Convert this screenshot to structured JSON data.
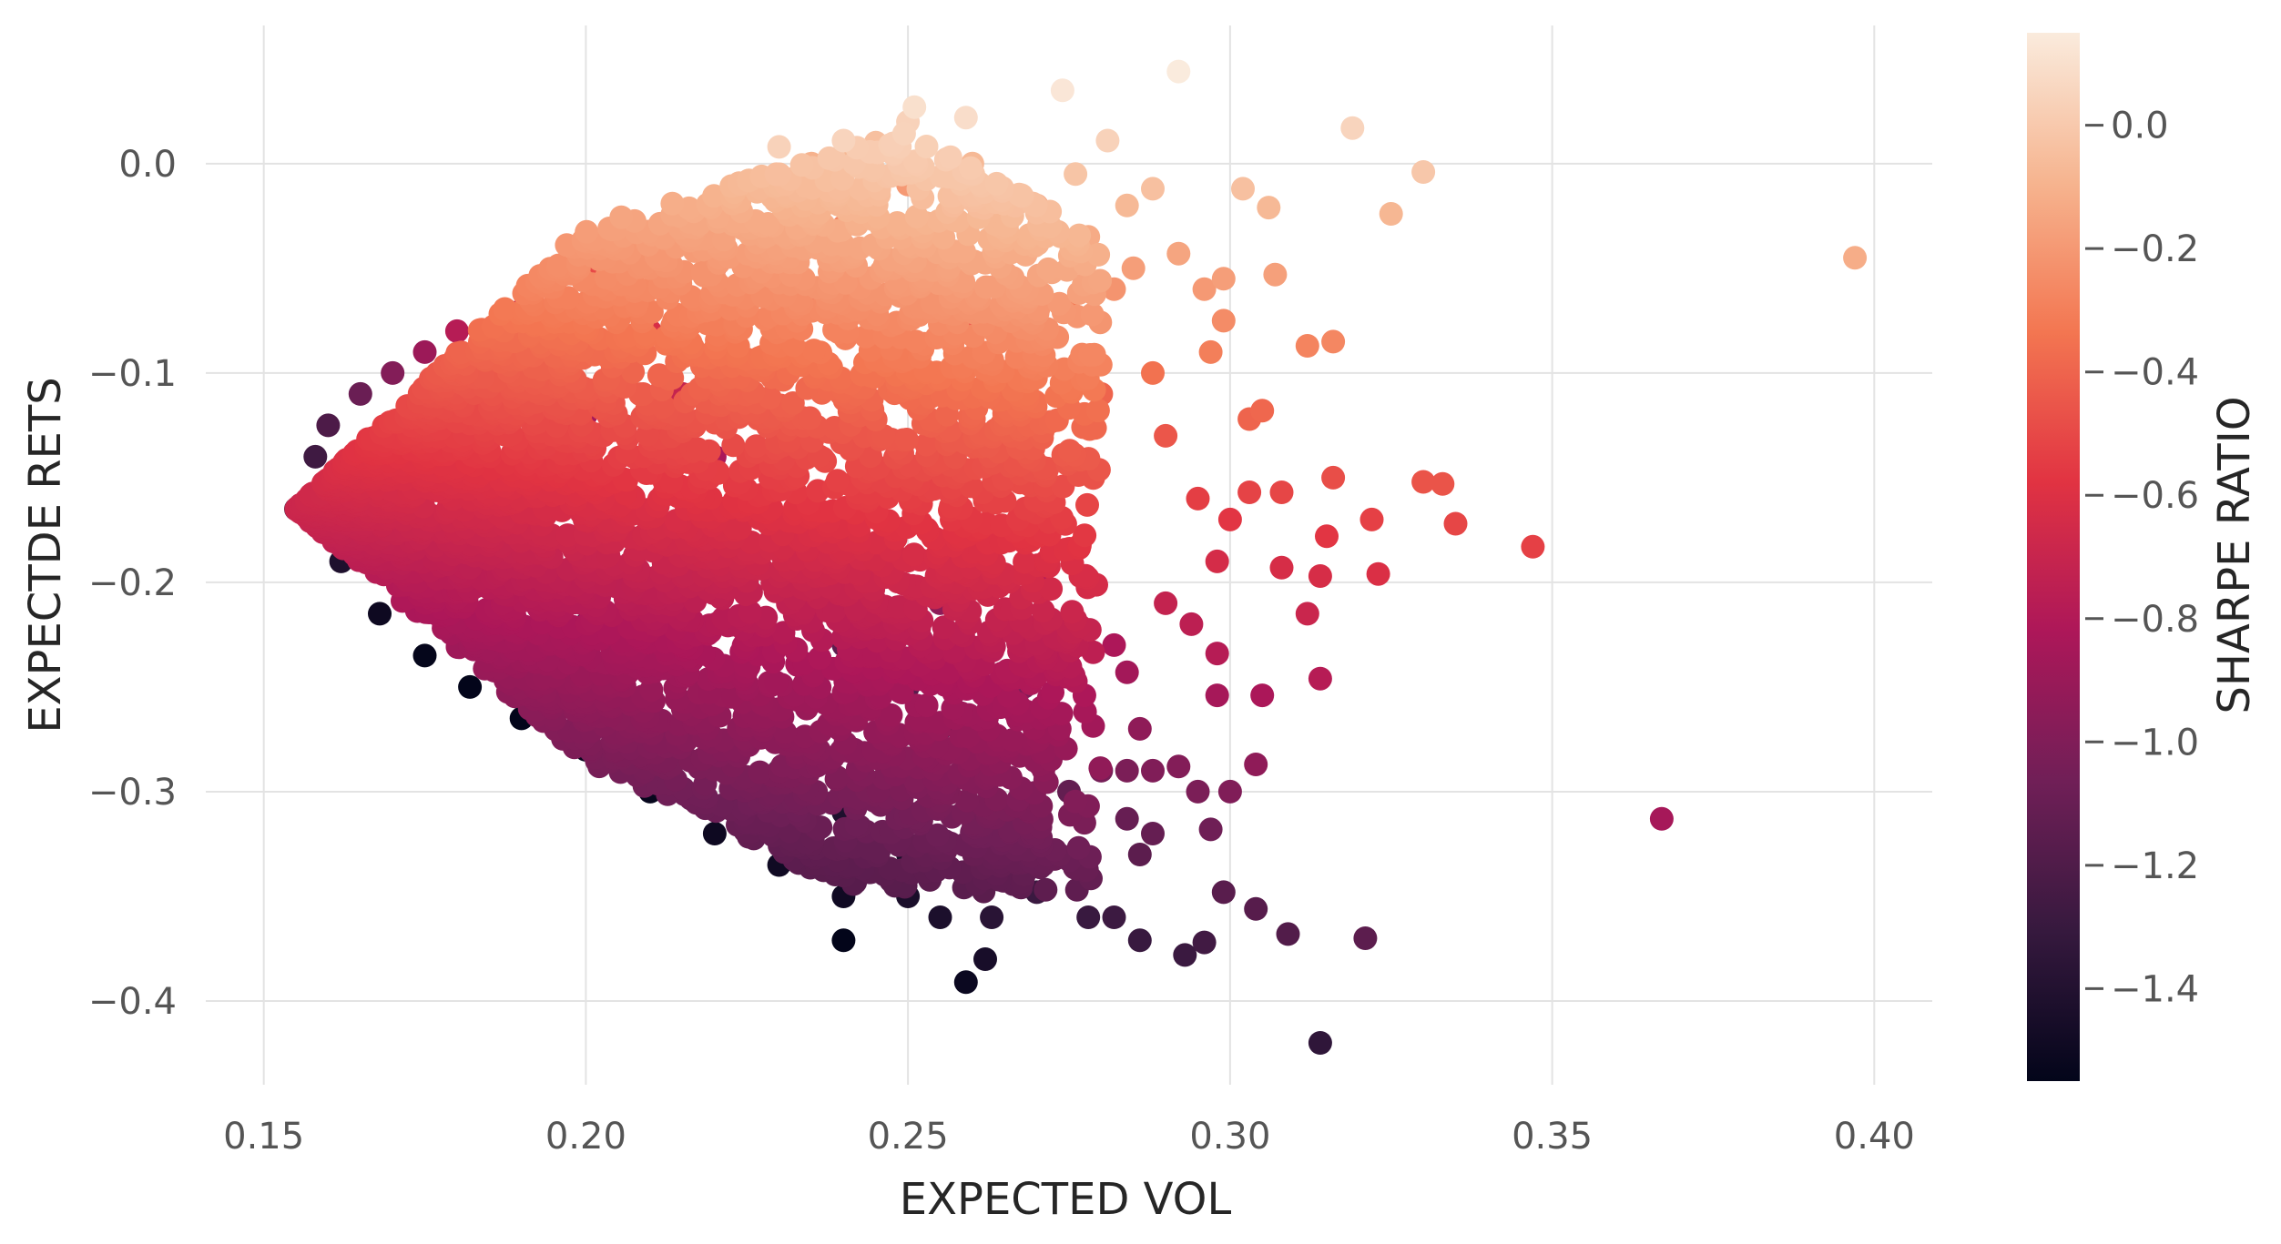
{
  "chart_data": {
    "type": "scatter",
    "xlabel": "EXPECTED VOL",
    "ylabel": "EXPECTDE RETS",
    "colorbar_label": "SHARPE RATIO",
    "xlim": [
      0.141,
      0.409
    ],
    "ylim": [
      -0.44,
      0.066
    ],
    "x_ticks": [
      0.15,
      0.2,
      0.25,
      0.3,
      0.35,
      0.4
    ],
    "x_tick_labels": [
      "0.15",
      "0.20",
      "0.25",
      "0.30",
      "0.35",
      "0.40"
    ],
    "y_ticks": [
      0.0,
      -0.1,
      -0.2,
      -0.3,
      -0.4
    ],
    "y_tick_labels": [
      "0.0",
      "−0.1",
      "−0.2",
      "−0.3",
      "−0.4"
    ],
    "colorbar_range": [
      -1.55,
      0.15
    ],
    "colorbar_ticks": [
      0.0,
      -0.2,
      -0.4,
      -0.6,
      -0.8,
      -1.0,
      -1.2,
      -1.4
    ],
    "colorbar_tick_labels": [
      "0.0",
      "−0.2",
      "−0.4",
      "−0.6",
      "−0.8",
      "−1.0",
      "−1.2",
      "−1.4"
    ],
    "colormap": [
      "#03051a",
      "#36193e",
      "#701f57",
      "#ad1759",
      "#e13342",
      "#f37651",
      "#f6b48f",
      "#faebdd"
    ],
    "grid": true,
    "dense_region_sample": [
      [
        0.155,
        -0.165,
        -1.36
      ],
      [
        0.158,
        -0.14,
        -1.27
      ],
      [
        0.16,
        -0.125,
        -1.21
      ],
      [
        0.162,
        -0.19,
        -1.42
      ],
      [
        0.165,
        -0.11,
        -1.09
      ],
      [
        0.168,
        -0.215,
        -1.5
      ],
      [
        0.17,
        -0.1,
        -0.99
      ],
      [
        0.175,
        -0.09,
        -0.89
      ],
      [
        0.175,
        -0.235,
        -1.54
      ],
      [
        0.18,
        -0.08,
        -0.78
      ],
      [
        0.182,
        -0.25,
        -1.55
      ],
      [
        0.19,
        -0.07,
        -0.68
      ],
      [
        0.19,
        -0.265,
        -1.55
      ],
      [
        0.2,
        -0.05,
        -0.5
      ],
      [
        0.2,
        -0.28,
        -1.53
      ],
      [
        0.21,
        -0.035,
        -0.37
      ],
      [
        0.21,
        -0.3,
        -1.53
      ],
      [
        0.22,
        -0.02,
        -0.24
      ],
      [
        0.22,
        -0.32,
        -1.5
      ],
      [
        0.23,
        -0.01,
        -0.17
      ],
      [
        0.23,
        -0.335,
        -1.49
      ],
      [
        0.24,
        0.0,
        -0.08
      ],
      [
        0.24,
        -0.35,
        -1.49
      ],
      [
        0.25,
        0.02,
        0.04
      ],
      [
        0.25,
        -0.35,
        -1.44
      ],
      [
        0.255,
        -0.36,
        -1.43
      ],
      [
        0.26,
        0.0,
        -0.07
      ],
      [
        0.265,
        -0.34,
        -1.31
      ],
      [
        0.27,
        -0.02,
        -0.2
      ],
      [
        0.27,
        -0.33,
        -1.24
      ],
      [
        0.275,
        -0.07,
        -0.33
      ],
      [
        0.275,
        -0.3,
        -1.12
      ],
      [
        0.265,
        -0.1,
        -0.42
      ],
      [
        0.268,
        -0.15,
        -0.62
      ],
      [
        0.27,
        -0.2,
        -0.8
      ],
      [
        0.268,
        -0.25,
        -1.0
      ],
      [
        0.18,
        -0.15,
        -1.05
      ],
      [
        0.19,
        -0.2,
        -1.25
      ],
      [
        0.2,
        -0.12,
        -0.85
      ],
      [
        0.2,
        -0.22,
        -1.28
      ],
      [
        0.21,
        -0.08,
        -0.62
      ],
      [
        0.21,
        -0.17,
        -0.99
      ],
      [
        0.22,
        -0.05,
        -0.44
      ],
      [
        0.22,
        -0.14,
        -0.83
      ],
      [
        0.22,
        -0.25,
        -1.29
      ],
      [
        0.23,
        -0.1,
        -0.64
      ],
      [
        0.23,
        -0.2,
        -1.06
      ],
      [
        0.23,
        -0.29,
        -1.38
      ],
      [
        0.24,
        -0.03,
        -0.3
      ],
      [
        0.24,
        -0.13,
        -0.74
      ],
      [
        0.24,
        -0.23,
        -1.14
      ],
      [
        0.24,
        -0.31,
        -1.42
      ],
      [
        0.25,
        -0.05,
        -0.38
      ],
      [
        0.25,
        -0.15,
        -0.78
      ],
      [
        0.25,
        -0.25,
        -1.17
      ],
      [
        0.25,
        -0.33,
        -1.44
      ],
      [
        0.26,
        -0.08,
        -0.46
      ],
      [
        0.26,
        -0.18,
        -0.85
      ],
      [
        0.26,
        -0.28,
        -1.22
      ],
      [
        0.185,
        -0.1,
        -0.82
      ],
      [
        0.195,
        -0.06,
        -0.58
      ],
      [
        0.215,
        -0.11,
        -0.71
      ],
      [
        0.235,
        -0.06,
        -0.45
      ],
      [
        0.245,
        -0.09,
        -0.55
      ],
      [
        0.255,
        -0.21,
        -0.95
      ],
      [
        0.255,
        -0.27,
        -1.18
      ],
      [
        0.235,
        -0.16,
        -0.9
      ],
      [
        0.215,
        -0.24,
        -1.3
      ],
      [
        0.205,
        -0.17,
        -1.08
      ],
      [
        0.195,
        -0.13,
        -0.98
      ],
      [
        0.175,
        -0.17,
        -1.2
      ],
      [
        0.185,
        -0.23,
        -1.42
      ],
      [
        0.245,
        0.01,
        -0.04
      ],
      [
        0.235,
        0.0,
        -0.1
      ],
      [
        0.26,
        -0.31,
        -1.29
      ],
      [
        0.25,
        -0.01,
        -0.2
      ]
    ],
    "outlier_points": [
      [
        0.292,
        0.044,
        0.15
      ],
      [
        0.274,
        0.035,
        0.13
      ],
      [
        0.251,
        0.027,
        0.1
      ],
      [
        0.259,
        0.022,
        0.09
      ],
      [
        0.319,
        0.017,
        0.05
      ],
      [
        0.23,
        0.008,
        0.04
      ],
      [
        0.24,
        0.011,
        0.05
      ],
      [
        0.281,
        0.011,
        0.04
      ],
      [
        0.33,
        -0.004,
        -0.01
      ],
      [
        0.397,
        -0.045,
        -0.12
      ],
      [
        0.325,
        -0.024,
        -0.08
      ],
      [
        0.306,
        -0.021,
        -0.07
      ],
      [
        0.302,
        -0.012,
        -0.04
      ],
      [
        0.307,
        -0.053,
        -0.17
      ],
      [
        0.312,
        -0.087,
        -0.28
      ],
      [
        0.316,
        -0.085,
        -0.27
      ],
      [
        0.299,
        -0.075,
        -0.25
      ],
      [
        0.303,
        -0.122,
        -0.4
      ],
      [
        0.305,
        -0.118,
        -0.39
      ],
      [
        0.33,
        -0.152,
        -0.46
      ],
      [
        0.333,
        -0.153,
        -0.46
      ],
      [
        0.335,
        -0.172,
        -0.51
      ],
      [
        0.347,
        -0.183,
        -0.53
      ],
      [
        0.322,
        -0.17,
        -0.53
      ],
      [
        0.323,
        -0.196,
        -0.61
      ],
      [
        0.316,
        -0.15,
        -0.48
      ],
      [
        0.315,
        -0.178,
        -0.57
      ],
      [
        0.314,
        -0.197,
        -0.63
      ],
      [
        0.312,
        -0.215,
        -0.69
      ],
      [
        0.308,
        -0.193,
        -0.63
      ],
      [
        0.314,
        -0.246,
        -0.78
      ],
      [
        0.367,
        -0.313,
        -0.85
      ],
      [
        0.305,
        -0.254,
        -0.83
      ],
      [
        0.298,
        -0.254,
        -0.85
      ],
      [
        0.298,
        -0.234,
        -0.78
      ],
      [
        0.304,
        -0.287,
        -0.94
      ],
      [
        0.3,
        -0.3,
        -1.0
      ],
      [
        0.297,
        -0.318,
        -1.07
      ],
      [
        0.299,
        -0.348,
        -1.16
      ],
      [
        0.304,
        -0.356,
        -1.17
      ],
      [
        0.309,
        -0.368,
        -1.19
      ],
      [
        0.321,
        -0.37,
        -1.15
      ],
      [
        0.314,
        -0.42,
        -1.34
      ],
      [
        0.296,
        -0.372,
        -1.26
      ],
      [
        0.293,
        -0.378,
        -1.29
      ],
      [
        0.286,
        -0.371,
        -1.3
      ],
      [
        0.282,
        -0.36,
        -1.28
      ],
      [
        0.278,
        -0.36,
        -1.3
      ],
      [
        0.27,
        -0.348,
        -1.29
      ],
      [
        0.262,
        -0.38,
        -1.45
      ],
      [
        0.259,
        -0.391,
        -1.51
      ],
      [
        0.24,
        -0.371,
        -1.55
      ],
      [
        0.263,
        -0.36,
        -1.37
      ],
      [
        0.286,
        -0.33,
        -1.15
      ],
      [
        0.288,
        -0.32,
        -1.11
      ],
      [
        0.284,
        -0.313,
        -1.1
      ],
      [
        0.28,
        -0.29,
        -1.04
      ],
      [
        0.284,
        -0.29,
        -1.02
      ],
      [
        0.286,
        -0.27,
        -0.94
      ],
      [
        0.284,
        -0.243,
        -0.86
      ],
      [
        0.288,
        -0.29,
        -1.0
      ],
      [
        0.292,
        -0.288,
        -0.99
      ],
      [
        0.295,
        -0.3,
        -1.02
      ],
      [
        0.282,
        -0.23,
        -0.82
      ],
      [
        0.29,
        -0.21,
        -0.72
      ],
      [
        0.294,
        -0.22,
        -0.75
      ],
      [
        0.298,
        -0.19,
        -0.64
      ],
      [
        0.295,
        -0.16,
        -0.54
      ],
      [
        0.3,
        -0.17,
        -0.57
      ],
      [
        0.303,
        -0.157,
        -0.52
      ],
      [
        0.308,
        -0.157,
        -0.51
      ],
      [
        0.29,
        -0.13,
        -0.45
      ],
      [
        0.297,
        -0.09,
        -0.3
      ],
      [
        0.296,
        -0.06,
        -0.2
      ],
      [
        0.292,
        -0.043,
        -0.15
      ],
      [
        0.285,
        -0.05,
        -0.18
      ],
      [
        0.284,
        -0.02,
        -0.07
      ],
      [
        0.28,
        -0.11,
        -0.4
      ],
      [
        0.288,
        -0.1,
        -0.35
      ],
      [
        0.282,
        -0.06,
        -0.22
      ],
      [
        0.278,
        -0.035,
        -0.13
      ],
      [
        0.276,
        -0.005,
        -0.02
      ],
      [
        0.288,
        -0.012,
        -0.04
      ],
      [
        0.299,
        -0.055,
        -0.18
      ]
    ]
  }
}
